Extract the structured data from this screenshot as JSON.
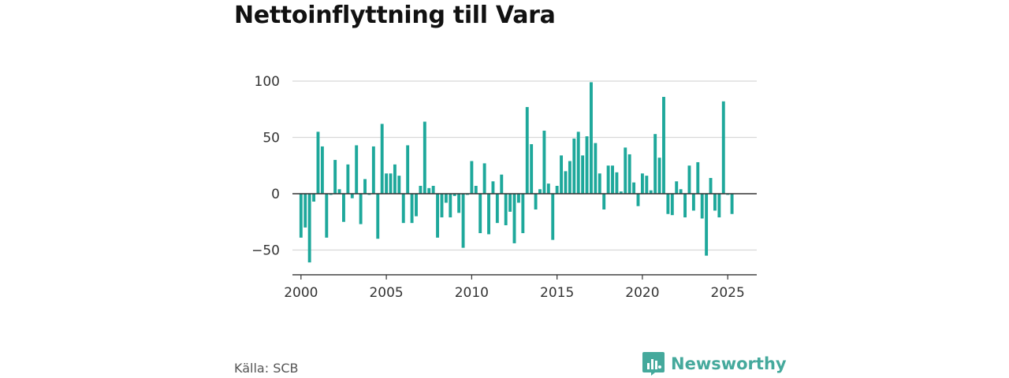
{
  "title": "Nettoinflyttning till Vara",
  "source": "Källa: SCB",
  "brand": {
    "name": "Newsworthy",
    "icon": "newsworthy-logo-icon",
    "color": "#45a99c"
  },
  "chart_data": {
    "type": "bar",
    "bar_color": "#1ea89b",
    "grid": true,
    "legend": "none",
    "xlim": [
      1999.5,
      2026.7
    ],
    "ylim": [
      -72,
      100
    ],
    "x_ticks": [
      2000,
      2005,
      2010,
      2015,
      2020,
      2025
    ],
    "y_ticks": [
      100,
      50,
      0,
      -50
    ],
    "y_tick_labels": [
      "100",
      "50",
      "0",
      "−50"
    ],
    "series": [
      {
        "start_year": 2000,
        "period": "quarter",
        "values": [
          -39,
          -30,
          -61,
          -7,
          55,
          42,
          -39,
          -1,
          30,
          4,
          -25,
          26,
          -4,
          43,
          -27,
          13,
          -1,
          42,
          -40,
          62,
          18,
          18,
          26,
          16,
          -26,
          43,
          -26,
          -20,
          7,
          64,
          5,
          7,
          -39,
          -21,
          -8,
          -21,
          -2,
          -17,
          -48,
          -1,
          29,
          7,
          -35,
          27,
          -36,
          11,
          -26,
          17,
          -28,
          -16,
          -44,
          -8,
          -35,
          77,
          44,
          -14,
          4,
          56,
          9,
          -41,
          7,
          34,
          20,
          29,
          49,
          55,
          34,
          51,
          99,
          45,
          18,
          -14,
          25,
          25,
          19,
          2,
          41,
          35,
          10,
          -11,
          18,
          16,
          3,
          53,
          32,
          86,
          -18,
          -19,
          11,
          4,
          -21,
          25,
          -15,
          28,
          -22,
          -55,
          14,
          -15,
          -21,
          82,
          -1,
          -18
        ]
      }
    ]
  }
}
